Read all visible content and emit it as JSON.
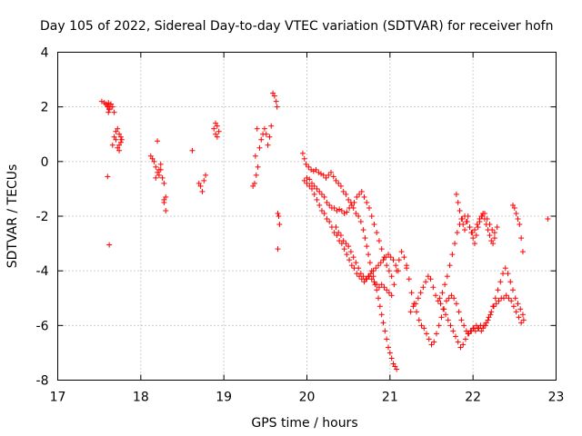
{
  "chart_data": {
    "type": "scatter",
    "title": "Day 105 of 2022, Sidereal Day-to-day VTEC variation (SDTVAR) for receiver hofn",
    "xlabel": "GPS time / hours",
    "ylabel": "SDTVAR / TECUs",
    "xlim": [
      17,
      23
    ],
    "ylim": [
      -8,
      4
    ],
    "xticks": [
      "17",
      "18",
      "19",
      "20",
      "21",
      "22",
      "23"
    ],
    "yticks": [
      "-8",
      "-6",
      "-4",
      "-2",
      "0",
      "2",
      "4"
    ],
    "grid": true,
    "marker": "+",
    "color": "#ff0000",
    "series": [
      {
        "name": "SDTVAR",
        "x": [
          17.53,
          17.56,
          17.58,
          17.6,
          17.62,
          17.64,
          17.66,
          17.68,
          17.6,
          17.62,
          17.64,
          17.6,
          17.62,
          17.66,
          17.68,
          17.7,
          17.7,
          17.72,
          17.74,
          17.76,
          17.72,
          17.74,
          17.76,
          17.74,
          17.77,
          17.61,
          17.61,
          18.12,
          18.14,
          18.16,
          18.18,
          18.2,
          18.22,
          18.24,
          18.26,
          18.28,
          18.3,
          18.2,
          18.22,
          18.24,
          18.28,
          18.3,
          18.28,
          18.18,
          18.62,
          18.7,
          18.72,
          18.74,
          18.76,
          18.78,
          18.88,
          18.9,
          18.92,
          18.94,
          18.9,
          18.92,
          19.35,
          19.37,
          19.39,
          19.41,
          19.43,
          19.45,
          19.47,
          19.49,
          19.51,
          19.53,
          19.55,
          19.57,
          19.59,
          19.61,
          19.63,
          19.64,
          19.65,
          19.66,
          19.67,
          19.65,
          19.38,
          19.4,
          19.95,
          19.97,
          19.99,
          20.02,
          20.05,
          20.08,
          20.11,
          20.14,
          20.17,
          20.2,
          20.23,
          20.26,
          20.29,
          20.32,
          20.35,
          20.38,
          20.41,
          20.44,
          20.47,
          20.5,
          20.53,
          20.56,
          20.59,
          20.62,
          20.65,
          20.68,
          20.7,
          20.72,
          20.74,
          20.76,
          20.78,
          20.8,
          20.82,
          20.84,
          20.86,
          20.88,
          20.9,
          20.92,
          20.94,
          20.96,
          20.98,
          21.0,
          21.02,
          21.04,
          21.06,
          21.08,
          19.97,
          20.0,
          20.03,
          20.06,
          20.09,
          20.12,
          20.15,
          20.18,
          20.21,
          20.24,
          20.27,
          20.3,
          20.33,
          20.36,
          20.39,
          20.42,
          20.45,
          20.48,
          20.51,
          20.54,
          20.57,
          20.6,
          20.63,
          20.66,
          20.69,
          20.72,
          20.75,
          20.78,
          20.81,
          20.84,
          20.87,
          20.9,
          20.93,
          20.96,
          20.99,
          21.02,
          20.0,
          20.03,
          20.06,
          20.09,
          20.12,
          20.15,
          20.18,
          20.21,
          20.24,
          20.27,
          20.3,
          20.33,
          20.36,
          20.39,
          20.42,
          20.45,
          20.48,
          20.51,
          20.54,
          20.57,
          20.6,
          20.63,
          20.66,
          20.69,
          20.72,
          20.75,
          20.78,
          20.81,
          20.84,
          20.87,
          20.9,
          20.93,
          20.96,
          20.99,
          21.02,
          21.05,
          21.08,
          21.11,
          21.14,
          21.17,
          21.2,
          20.35,
          20.38,
          20.41,
          20.44,
          20.47,
          20.5,
          20.53,
          20.56,
          20.59,
          20.62,
          20.65,
          20.68,
          20.71,
          20.74,
          20.77,
          20.8,
          20.83,
          20.86,
          20.89,
          20.92,
          20.95,
          20.98,
          21.01,
          21.04,
          21.07,
          21.1,
          21.2,
          21.23,
          21.26,
          21.29,
          21.32,
          21.35,
          21.38,
          21.41,
          21.44,
          21.47,
          21.5,
          21.53,
          21.56,
          21.59,
          21.62,
          21.65,
          21.68,
          21.71,
          21.74,
          21.77,
          21.8,
          21.83,
          21.86,
          21.89,
          21.92,
          21.95,
          21.98,
          22.01,
          22.04,
          22.07,
          22.1,
          22.13,
          22.16,
          22.19,
          22.22,
          22.25,
          22.28,
          22.31,
          22.34,
          22.37,
          22.4,
          22.43,
          22.46,
          22.49,
          22.52,
          22.55,
          22.58,
          22.61,
          21.25,
          21.28,
          21.31,
          21.34,
          21.37,
          21.4,
          21.43,
          21.46,
          21.49,
          21.52,
          21.55,
          21.58,
          21.61,
          21.64,
          21.67,
          21.7,
          21.73,
          21.76,
          21.79,
          21.82,
          21.85,
          21.88,
          21.91,
          21.94,
          21.97,
          22.0,
          22.03,
          22.06,
          22.09,
          22.12,
          22.15,
          22.18,
          22.21,
          22.24,
          22.27,
          22.3,
          22.33,
          22.36,
          22.39,
          22.42,
          22.45,
          22.48,
          22.51,
          22.54,
          22.57,
          22.6,
          21.6,
          21.63,
          21.66,
          21.69,
          21.72,
          21.75,
          21.78,
          21.81,
          21.84,
          21.87,
          21.9,
          21.93,
          21.96,
          21.99,
          22.02,
          22.05,
          22.08,
          22.11,
          22.14,
          22.17,
          22.2,
          22.23,
          22.26,
          22.29,
          21.8,
          21.82,
          21.84,
          21.86,
          21.88,
          21.9,
          21.92,
          21.94,
          21.96,
          21.98,
          22.0,
          22.02,
          22.04,
          22.06,
          22.08,
          22.1,
          22.12,
          22.14,
          22.16,
          22.18,
          22.2,
          22.22,
          22.24,
          22.26,
          22.48,
          22.5,
          22.52,
          22.54,
          22.56,
          22.58,
          22.6,
          22.9
        ],
        "y": [
          2.2,
          2.15,
          2.1,
          2.0,
          1.9,
          2.1,
          2.0,
          1.8,
          2.05,
          1.95,
          2.1,
          -0.55,
          -3.05,
          0.6,
          0.9,
          1.1,
          0.8,
          1.2,
          1.0,
          0.7,
          0.5,
          0.6,
          0.9,
          0.4,
          0.8,
          1.8,
          2.15,
          0.2,
          0.1,
          0.0,
          -0.2,
          -0.4,
          -0.5,
          -0.3,
          -0.6,
          -0.8,
          -1.3,
          0.75,
          -0.3,
          -0.1,
          -1.5,
          -1.8,
          -1.4,
          -0.6,
          0.4,
          -0.8,
          -0.9,
          -1.1,
          -0.7,
          -0.5,
          1.2,
          1.4,
          1.3,
          1.1,
          1.0,
          0.9,
          -0.9,
          -0.8,
          -0.5,
          -0.2,
          0.5,
          0.8,
          1.0,
          1.2,
          1.0,
          0.6,
          0.9,
          1.3,
          2.5,
          2.4,
          2.2,
          2.0,
          -1.9,
          -2.0,
          -2.3,
          -3.2,
          0.2,
          1.2,
          0.3,
          0.1,
          -0.1,
          -0.2,
          -0.3,
          -0.35,
          -0.3,
          -0.4,
          -0.45,
          -0.5,
          -0.6,
          -0.5,
          -0.4,
          -0.55,
          -0.7,
          -0.8,
          -0.9,
          -1.1,
          -1.2,
          -1.4,
          -1.5,
          -1.7,
          -1.9,
          -2.0,
          -2.2,
          -2.5,
          -2.8,
          -3.1,
          -3.4,
          -3.7,
          -4.0,
          -4.2,
          -4.5,
          -4.7,
          -5.0,
          -5.3,
          -5.6,
          -5.9,
          -6.2,
          -6.5,
          -6.8,
          -7.0,
          -7.2,
          -7.4,
          -7.5,
          -7.6,
          -0.7,
          -0.6,
          -0.65,
          -0.8,
          -0.9,
          -1.0,
          -1.1,
          -1.2,
          -1.3,
          -1.5,
          -1.6,
          -1.7,
          -1.7,
          -1.8,
          -1.75,
          -1.8,
          -1.9,
          -1.85,
          -1.7,
          -1.6,
          -1.5,
          -1.3,
          -1.2,
          -1.1,
          -1.3,
          -1.5,
          -1.7,
          -2.0,
          -2.3,
          -2.6,
          -2.9,
          -3.2,
          -3.5,
          -3.8,
          -4.0,
          -4.2,
          -0.8,
          -0.9,
          -1.0,
          -1.2,
          -1.4,
          -1.6,
          -1.8,
          -1.9,
          -2.1,
          -2.2,
          -2.4,
          -2.6,
          -2.7,
          -2.9,
          -3.0,
          -3.2,
          -3.4,
          -3.6,
          -3.8,
          -3.9,
          -4.1,
          -4.2,
          -4.3,
          -4.4,
          -4.3,
          -4.2,
          -4.3,
          -4.4,
          -4.5,
          -4.6,
          -4.5,
          -4.6,
          -4.7,
          -4.8,
          -4.9,
          -4.5,
          -4.0,
          -3.6,
          -3.3,
          -3.5,
          -3.8,
          -2.4,
          -2.6,
          -2.7,
          -2.9,
          -3.0,
          -3.1,
          -3.3,
          -3.5,
          -3.7,
          -3.9,
          -4.1,
          -4.2,
          -4.3,
          -4.2,
          -4.1,
          -4.0,
          -3.9,
          -3.8,
          -3.7,
          -3.6,
          -3.5,
          -3.4,
          -3.5,
          -3.6,
          -3.8,
          -4.0,
          -3.9,
          -4.3,
          -4.8,
          -5.2,
          -5.5,
          -5.8,
          -6.0,
          -6.1,
          -6.3,
          -6.5,
          -6.7,
          -6.6,
          -6.3,
          -6.0,
          -5.7,
          -5.4,
          -5.1,
          -5.0,
          -4.9,
          -5.0,
          -5.2,
          -5.5,
          -5.8,
          -6.0,
          -6.2,
          -6.3,
          -6.2,
          -6.1,
          -6.0,
          -6.1,
          -6.2,
          -6.0,
          -5.9,
          -5.7,
          -5.5,
          -5.3,
          -5.2,
          -5.1,
          -5.0,
          -5.0,
          -4.9,
          -5.0,
          -5.1,
          -5.3,
          -5.5,
          -5.7,
          -5.9,
          -5.8,
          -5.5,
          -5.3,
          -5.2,
          -5.0,
          -4.8,
          -4.6,
          -4.4,
          -4.2,
          -4.3,
          -4.6,
          -4.9,
          -5.1,
          -5.2,
          -5.4,
          -5.6,
          -5.8,
          -6.0,
          -6.2,
          -6.4,
          -6.6,
          -6.8,
          -6.7,
          -6.5,
          -6.3,
          -6.2,
          -6.1,
          -6.2,
          -6.1,
          -6.0,
          -6.1,
          -6.0,
          -5.8,
          -5.6,
          -5.3,
          -5.0,
          -4.7,
          -4.4,
          -4.1,
          -3.9,
          -4.1,
          -4.4,
          -4.7,
          -5.0,
          -5.2,
          -5.4,
          -5.6,
          -5.0,
          -4.8,
          -4.5,
          -4.2,
          -3.8,
          -3.4,
          -3.0,
          -2.6,
          -2.3,
          -2.1,
          -2.0,
          -2.2,
          -2.4,
          -2.6,
          -2.5,
          -2.3,
          -2.1,
          -2.0,
          -1.9,
          -2.1,
          -2.3,
          -2.5,
          -2.6,
          -2.4,
          -1.2,
          -1.5,
          -1.8,
          -2.1,
          -2.3,
          -2.5,
          -2.2,
          -2.0,
          -2.4,
          -2.6,
          -2.8,
          -3.0,
          -2.7,
          -2.4,
          -2.2,
          -2.0,
          -1.9,
          -2.1,
          -2.3,
          -2.5,
          -2.7,
          -2.9,
          -3.0,
          -2.8,
          -1.6,
          -1.7,
          -1.9,
          -2.1,
          -2.3,
          -2.8,
          -3.3,
          -2.1
        ]
      }
    ]
  }
}
